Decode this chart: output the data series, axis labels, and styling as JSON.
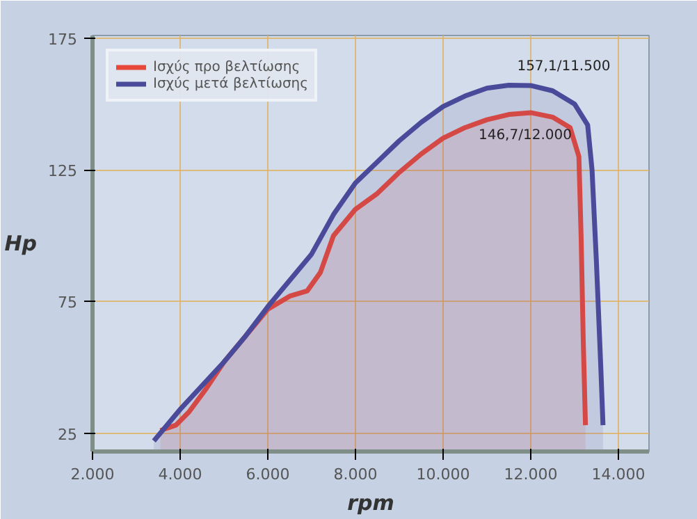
{
  "chart_data": {
    "type": "area",
    "xlabel": "rpm",
    "ylabel": "Hp",
    "xlim": [
      2000,
      14700
    ],
    "ylim": [
      18,
      176
    ],
    "xticks": [
      {
        "value": 2000,
        "label": "2.000"
      },
      {
        "value": 4000,
        "label": "4.000"
      },
      {
        "value": 6000,
        "label": "6.000"
      },
      {
        "value": 8000,
        "label": "8.000"
      },
      {
        "value": 10000,
        "label": "10.000"
      },
      {
        "value": 12000,
        "label": "12.000"
      },
      {
        "value": 14000,
        "label": "14.000"
      }
    ],
    "yticks": [
      25,
      75,
      125,
      175
    ],
    "grid": true,
    "legend": "top left",
    "series": [
      {
        "name": "Ισχύς προ βελτίωσης",
        "color": "#e8483a",
        "x": [
          3550,
          3900,
          4200,
          4600,
          5000,
          5500,
          6000,
          6500,
          6900,
          7200,
          7500,
          8000,
          8500,
          9000,
          9500,
          10000,
          10500,
          11000,
          11500,
          12000,
          12500,
          12900,
          13100,
          13150,
          13200,
          13250
        ],
        "values": [
          26,
          28,
          33,
          42,
          52,
          62,
          72,
          77,
          79,
          86,
          100,
          110,
          116,
          124,
          131,
          137,
          141,
          144,
          146,
          146.7,
          145,
          141,
          130,
          100,
          60,
          28
        ]
      },
      {
        "name": "Ισχύς μετά βελτίωσης",
        "color": "#4a4a9a",
        "x": [
          3400,
          4000,
          4500,
          5000,
          5500,
          6000,
          6500,
          7000,
          7500,
          8000,
          8500,
          9000,
          9500,
          10000,
          10500,
          11000,
          11500,
          12000,
          12500,
          13000,
          13300,
          13400,
          13500,
          13600,
          13650
        ],
        "values": [
          22,
          34,
          43,
          52,
          62,
          73,
          83,
          93,
          108,
          120,
          128,
          136,
          143,
          149,
          153,
          156,
          157.1,
          157,
          155,
          150,
          142,
          125,
          90,
          50,
          28
        ]
      }
    ],
    "annotations": [
      {
        "text": "157,1/11.500",
        "x": 11500,
        "y": 157.1
      },
      {
        "text": "146,7/12.000",
        "x": 12000,
        "y": 146.7
      }
    ]
  }
}
